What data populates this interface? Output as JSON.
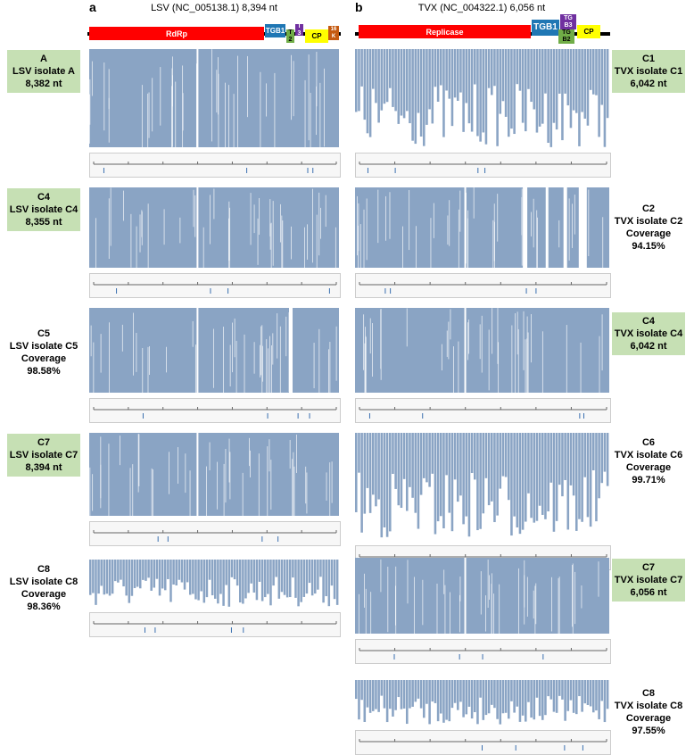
{
  "panels": [
    {
      "letter": "a",
      "title": "LSV (NC_005138.1) 8,394 nt",
      "genes": [
        "RdRp",
        "TGB1",
        "T\n2",
        "T\n3",
        "CP",
        "16\nK"
      ],
      "samples": [
        {
          "id": "A",
          "name": "LSV isolate A",
          "detail": "8,382 nt",
          "highlighted": true
        },
        {
          "id": "C4",
          "name": "LSV isolate C4",
          "detail": "8,355 nt",
          "highlighted": true
        },
        {
          "id": "C5",
          "name": "LSV isolate C5",
          "detail": "Coverage 98.58%",
          "highlighted": false
        },
        {
          "id": "C7",
          "name": "LSV isolate C7",
          "detail": "8,394 nt",
          "highlighted": true
        },
        {
          "id": "C8",
          "name": "LSV isolate C8",
          "detail": "Coverage 98.36%",
          "highlighted": false
        }
      ]
    },
    {
      "letter": "b",
      "title": "TVX (NC_004322.1) 6,056 nt",
      "genes": [
        "Replicase",
        "TGB1",
        "TG\nB3",
        "TG\nB2",
        "CP"
      ],
      "samples": [
        {
          "id": "C1",
          "name": "TVX isolate C1",
          "detail": "6,042 nt",
          "highlighted": true
        },
        {
          "id": "C2",
          "name": "TVX isolate C2",
          "detail": "Coverage 94.15%",
          "highlighted": false
        },
        {
          "id": "C4",
          "name": "TVX isolate C4",
          "detail": "6,042 nt",
          "highlighted": true
        },
        {
          "id": "C6",
          "name": "TVX isolate C6",
          "detail": "Coverage 99.71%",
          "highlighted": false
        },
        {
          "id": "C7",
          "name": "TVX isolate C7",
          "detail": "6,056 nt",
          "highlighted": true
        },
        {
          "id": "C8",
          "name": "TVX isolate C8",
          "detail": "Coverage 97.55%",
          "highlighted": false
        }
      ]
    }
  ]
}
